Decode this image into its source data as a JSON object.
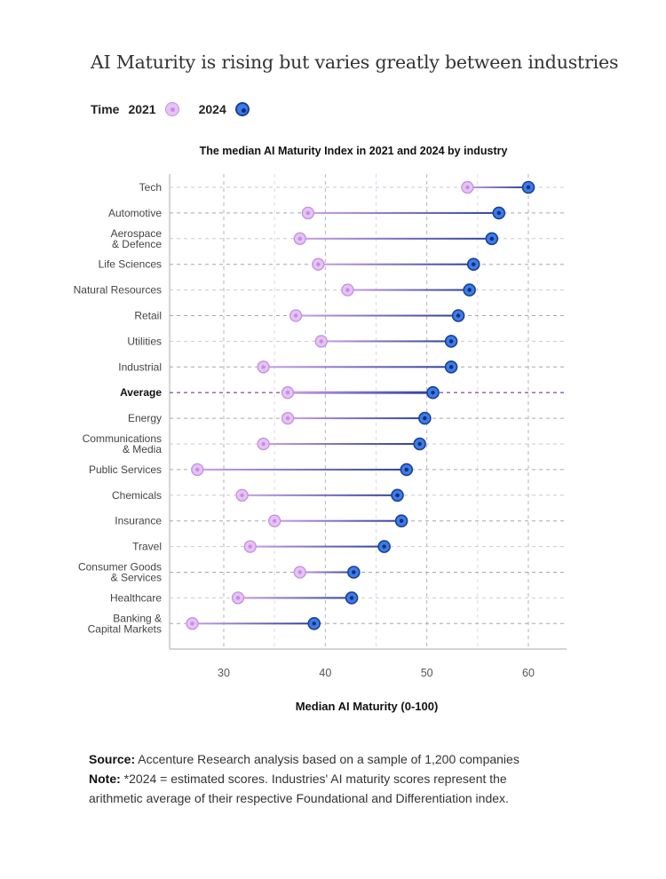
{
  "title": "AI Maturity is rising but varies greatly between industries",
  "legend": {
    "label": "Time",
    "items": [
      "2021",
      "2024"
    ]
  },
  "colors": {
    "y2021": "#e5c3f3",
    "y2024": "#3a7de9",
    "line_start": "#c9a0e6",
    "line_end": "#2b3f9a"
  },
  "chart_data": {
    "type": "dumbbell",
    "title": "The median AI Maturity Index in 2021 and 2024 by industry",
    "xlabel": "Median AI Maturity (0-100)",
    "xlim": [
      24.7,
      63.7
    ],
    "xticks": [
      30,
      40,
      50,
      60
    ],
    "grid": true,
    "legend_position": "top-left",
    "series_names": [
      "2021",
      "2024"
    ],
    "rows": [
      {
        "label": [
          "Tech"
        ],
        "v2021": 54.0,
        "v2024": 60.0
      },
      {
        "label": [
          "Automotive"
        ],
        "v2021": 38.3,
        "v2024": 57.1
      },
      {
        "label": [
          "Aerospace",
          "& Defence"
        ],
        "v2021": 37.5,
        "v2024": 56.4
      },
      {
        "label": [
          "Life Sciences"
        ],
        "v2021": 39.3,
        "v2024": 54.6
      },
      {
        "label": [
          "Natural Resources"
        ],
        "v2021": 42.2,
        "v2024": 54.2
      },
      {
        "label": [
          "Retail"
        ],
        "v2021": 37.1,
        "v2024": 53.1
      },
      {
        "label": [
          "Utilities"
        ],
        "v2021": 39.6,
        "v2024": 52.4
      },
      {
        "label": [
          "Industrial"
        ],
        "v2021": 33.9,
        "v2024": 52.4
      },
      {
        "label": [
          "Average"
        ],
        "v2021": 36.3,
        "v2024": 50.6,
        "highlight": true
      },
      {
        "label": [
          "Energy"
        ],
        "v2021": 36.3,
        "v2024": 49.8
      },
      {
        "label": [
          "Communications",
          "& Media"
        ],
        "v2021": 33.9,
        "v2024": 49.3
      },
      {
        "label": [
          "Public Services"
        ],
        "v2021": 27.4,
        "v2024": 48.0
      },
      {
        "label": [
          "Chemicals"
        ],
        "v2021": 31.8,
        "v2024": 47.1
      },
      {
        "label": [
          "Insurance"
        ],
        "v2021": 35.0,
        "v2024": 47.5
      },
      {
        "label": [
          "Travel"
        ],
        "v2021": 32.6,
        "v2024": 45.8
      },
      {
        "label": [
          "Consumer Goods",
          "& Services"
        ],
        "v2021": 37.5,
        "v2024": 42.8
      },
      {
        "label": [
          "Healthcare"
        ],
        "v2021": 31.4,
        "v2024": 42.6
      },
      {
        "label": [
          "Banking &",
          "Capital Markets"
        ],
        "v2021": 26.9,
        "v2024": 38.9
      }
    ]
  },
  "source": {
    "source_label": "Source:",
    "source_text": " Accenture Research analysis based on a sample of 1,200 companies",
    "note_label": "Note:",
    "note_text": " *2024 = estimated scores. Industries' AI maturity scores represent the arithmetic average of their respective Foundational and Differentiation index."
  }
}
